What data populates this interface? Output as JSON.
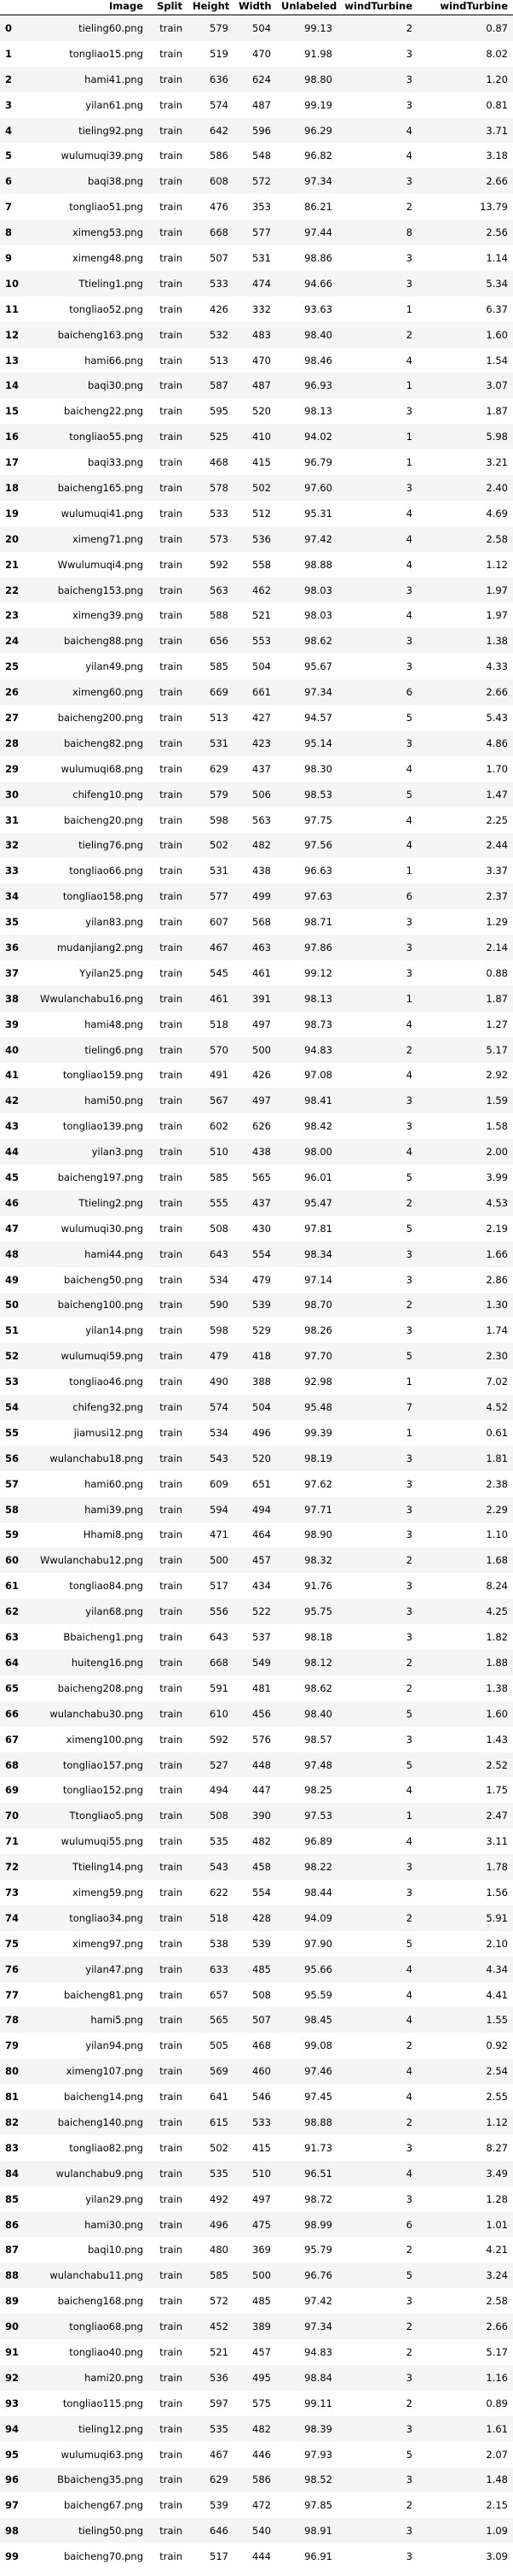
{
  "table": {
    "columns": [
      "",
      "Image",
      "Split",
      "Height",
      "Width",
      "Unlabeled",
      "windTurbine",
      "windTurbine"
    ],
    "rows": [
      [
        "0",
        "tieling60.png",
        "train",
        "579",
        "504",
        "99.13",
        "2",
        "0.87"
      ],
      [
        "1",
        "tongliao15.png",
        "train",
        "519",
        "470",
        "91.98",
        "3",
        "8.02"
      ],
      [
        "2",
        "hami41.png",
        "train",
        "636",
        "624",
        "98.80",
        "3",
        "1.20"
      ],
      [
        "3",
        "yilan61.png",
        "train",
        "574",
        "487",
        "99.19",
        "3",
        "0.81"
      ],
      [
        "4",
        "tieling92.png",
        "train",
        "642",
        "596",
        "96.29",
        "4",
        "3.71"
      ],
      [
        "5",
        "wulumuqi39.png",
        "train",
        "586",
        "548",
        "96.82",
        "4",
        "3.18"
      ],
      [
        "6",
        "baqi38.png",
        "train",
        "608",
        "572",
        "97.34",
        "3",
        "2.66"
      ],
      [
        "7",
        "tongliao51.png",
        "train",
        "476",
        "353",
        "86.21",
        "2",
        "13.79"
      ],
      [
        "8",
        "ximeng53.png",
        "train",
        "668",
        "577",
        "97.44",
        "8",
        "2.56"
      ],
      [
        "9",
        "ximeng48.png",
        "train",
        "507",
        "531",
        "98.86",
        "3",
        "1.14"
      ],
      [
        "10",
        "Ttieling1.png",
        "train",
        "533",
        "474",
        "94.66",
        "3",
        "5.34"
      ],
      [
        "11",
        "tongliao52.png",
        "train",
        "426",
        "332",
        "93.63",
        "1",
        "6.37"
      ],
      [
        "12",
        "baicheng163.png",
        "train",
        "532",
        "483",
        "98.40",
        "2",
        "1.60"
      ],
      [
        "13",
        "hami66.png",
        "train",
        "513",
        "470",
        "98.46",
        "4",
        "1.54"
      ],
      [
        "14",
        "baqi30.png",
        "train",
        "587",
        "487",
        "96.93",
        "1",
        "3.07"
      ],
      [
        "15",
        "baicheng22.png",
        "train",
        "595",
        "520",
        "98.13",
        "3",
        "1.87"
      ],
      [
        "16",
        "tongliao55.png",
        "train",
        "525",
        "410",
        "94.02",
        "1",
        "5.98"
      ],
      [
        "17",
        "baqi33.png",
        "train",
        "468",
        "415",
        "96.79",
        "1",
        "3.21"
      ],
      [
        "18",
        "baicheng165.png",
        "train",
        "578",
        "502",
        "97.60",
        "3",
        "2.40"
      ],
      [
        "19",
        "wulumuqi41.png",
        "train",
        "533",
        "512",
        "95.31",
        "4",
        "4.69"
      ],
      [
        "20",
        "ximeng71.png",
        "train",
        "573",
        "536",
        "97.42",
        "4",
        "2.58"
      ],
      [
        "21",
        "Wwulumuqi4.png",
        "train",
        "592",
        "558",
        "98.88",
        "4",
        "1.12"
      ],
      [
        "22",
        "baicheng153.png",
        "train",
        "563",
        "462",
        "98.03",
        "3",
        "1.97"
      ],
      [
        "23",
        "ximeng39.png",
        "train",
        "588",
        "521",
        "98.03",
        "4",
        "1.97"
      ],
      [
        "24",
        "baicheng88.png",
        "train",
        "656",
        "553",
        "98.62",
        "3",
        "1.38"
      ],
      [
        "25",
        "yilan49.png",
        "train",
        "585",
        "504",
        "95.67",
        "3",
        "4.33"
      ],
      [
        "26",
        "ximeng60.png",
        "train",
        "669",
        "661",
        "97.34",
        "6",
        "2.66"
      ],
      [
        "27",
        "baicheng200.png",
        "train",
        "513",
        "427",
        "94.57",
        "5",
        "5.43"
      ],
      [
        "28",
        "baicheng82.png",
        "train",
        "531",
        "423",
        "95.14",
        "3",
        "4.86"
      ],
      [
        "29",
        "wulumuqi68.png",
        "train",
        "629",
        "437",
        "98.30",
        "4",
        "1.70"
      ],
      [
        "30",
        "chifeng10.png",
        "train",
        "579",
        "506",
        "98.53",
        "5",
        "1.47"
      ],
      [
        "31",
        "baicheng20.png",
        "train",
        "598",
        "563",
        "97.75",
        "4",
        "2.25"
      ],
      [
        "32",
        "tieling76.png",
        "train",
        "502",
        "482",
        "97.56",
        "4",
        "2.44"
      ],
      [
        "33",
        "tongliao66.png",
        "train",
        "531",
        "438",
        "96.63",
        "1",
        "3.37"
      ],
      [
        "34",
        "tongliao158.png",
        "train",
        "577",
        "499",
        "97.63",
        "6",
        "2.37"
      ],
      [
        "35",
        "yilan83.png",
        "train",
        "607",
        "568",
        "98.71",
        "3",
        "1.29"
      ],
      [
        "36",
        "mudanjiang2.png",
        "train",
        "467",
        "463",
        "97.86",
        "3",
        "2.14"
      ],
      [
        "37",
        "Yyilan25.png",
        "train",
        "545",
        "461",
        "99.12",
        "3",
        "0.88"
      ],
      [
        "38",
        "Wwulanchabu16.png",
        "train",
        "461",
        "391",
        "98.13",
        "1",
        "1.87"
      ],
      [
        "39",
        "hami48.png",
        "train",
        "518",
        "497",
        "98.73",
        "4",
        "1.27"
      ],
      [
        "40",
        "tieling6.png",
        "train",
        "570",
        "500",
        "94.83",
        "2",
        "5.17"
      ],
      [
        "41",
        "tongliao159.png",
        "train",
        "491",
        "426",
        "97.08",
        "4",
        "2.92"
      ],
      [
        "42",
        "hami50.png",
        "train",
        "567",
        "497",
        "98.41",
        "3",
        "1.59"
      ],
      [
        "43",
        "tongliao139.png",
        "train",
        "602",
        "626",
        "98.42",
        "3",
        "1.58"
      ],
      [
        "44",
        "yilan3.png",
        "train",
        "510",
        "438",
        "98.00",
        "4",
        "2.00"
      ],
      [
        "45",
        "baicheng197.png",
        "train",
        "585",
        "565",
        "96.01",
        "5",
        "3.99"
      ],
      [
        "46",
        "Ttieling2.png",
        "train",
        "555",
        "437",
        "95.47",
        "2",
        "4.53"
      ],
      [
        "47",
        "wulumuqi30.png",
        "train",
        "508",
        "430",
        "97.81",
        "5",
        "2.19"
      ],
      [
        "48",
        "hami44.png",
        "train",
        "643",
        "554",
        "98.34",
        "3",
        "1.66"
      ],
      [
        "49",
        "baicheng50.png",
        "train",
        "534",
        "479",
        "97.14",
        "3",
        "2.86"
      ],
      [
        "50",
        "baicheng100.png",
        "train",
        "590",
        "539",
        "98.70",
        "2",
        "1.30"
      ],
      [
        "51",
        "yilan14.png",
        "train",
        "598",
        "529",
        "98.26",
        "3",
        "1.74"
      ],
      [
        "52",
        "wulumuqi59.png",
        "train",
        "479",
        "418",
        "97.70",
        "5",
        "2.30"
      ],
      [
        "53",
        "tongliao46.png",
        "train",
        "490",
        "388",
        "92.98",
        "1",
        "7.02"
      ],
      [
        "54",
        "chifeng32.png",
        "train",
        "574",
        "504",
        "95.48",
        "7",
        "4.52"
      ],
      [
        "55",
        "jiamusi12.png",
        "train",
        "534",
        "496",
        "99.39",
        "1",
        "0.61"
      ],
      [
        "56",
        "wulanchabu18.png",
        "train",
        "543",
        "520",
        "98.19",
        "3",
        "1.81"
      ],
      [
        "57",
        "hami60.png",
        "train",
        "609",
        "651",
        "97.62",
        "3",
        "2.38"
      ],
      [
        "58",
        "hami39.png",
        "train",
        "594",
        "494",
        "97.71",
        "3",
        "2.29"
      ],
      [
        "59",
        "Hhami8.png",
        "train",
        "471",
        "464",
        "98.90",
        "3",
        "1.10"
      ],
      [
        "60",
        "Wwulanchabu12.png",
        "train",
        "500",
        "457",
        "98.32",
        "2",
        "1.68"
      ],
      [
        "61",
        "tongliao84.png",
        "train",
        "517",
        "434",
        "91.76",
        "3",
        "8.24"
      ],
      [
        "62",
        "yilan68.png",
        "train",
        "556",
        "522",
        "95.75",
        "3",
        "4.25"
      ],
      [
        "63",
        "Bbaicheng1.png",
        "train",
        "643",
        "537",
        "98.18",
        "3",
        "1.82"
      ],
      [
        "64",
        "huiteng16.png",
        "train",
        "668",
        "549",
        "98.12",
        "2",
        "1.88"
      ],
      [
        "65",
        "baicheng208.png",
        "train",
        "591",
        "481",
        "98.62",
        "2",
        "1.38"
      ],
      [
        "66",
        "wulanchabu30.png",
        "train",
        "610",
        "456",
        "98.40",
        "5",
        "1.60"
      ],
      [
        "67",
        "ximeng100.png",
        "train",
        "592",
        "576",
        "98.57",
        "3",
        "1.43"
      ],
      [
        "68",
        "tongliao157.png",
        "train",
        "527",
        "448",
        "97.48",
        "5",
        "2.52"
      ],
      [
        "69",
        "tongliao152.png",
        "train",
        "494",
        "447",
        "98.25",
        "4",
        "1.75"
      ],
      [
        "70",
        "Ttongliao5.png",
        "train",
        "508",
        "390",
        "97.53",
        "1",
        "2.47"
      ],
      [
        "71",
        "wulumuqi55.png",
        "train",
        "535",
        "482",
        "96.89",
        "4",
        "3.11"
      ],
      [
        "72",
        "Ttieling14.png",
        "train",
        "543",
        "458",
        "98.22",
        "3",
        "1.78"
      ],
      [
        "73",
        "ximeng59.png",
        "train",
        "622",
        "554",
        "98.44",
        "3",
        "1.56"
      ],
      [
        "74",
        "tongliao34.png",
        "train",
        "518",
        "428",
        "94.09",
        "2",
        "5.91"
      ],
      [
        "75",
        "ximeng97.png",
        "train",
        "538",
        "539",
        "97.90",
        "5",
        "2.10"
      ],
      [
        "76",
        "yilan47.png",
        "train",
        "633",
        "485",
        "95.66",
        "4",
        "4.34"
      ],
      [
        "77",
        "baicheng81.png",
        "train",
        "657",
        "508",
        "95.59",
        "4",
        "4.41"
      ],
      [
        "78",
        "hami5.png",
        "train",
        "565",
        "507",
        "98.45",
        "4",
        "1.55"
      ],
      [
        "79",
        "yilan94.png",
        "train",
        "505",
        "468",
        "99.08",
        "2",
        "0.92"
      ],
      [
        "80",
        "ximeng107.png",
        "train",
        "569",
        "460",
        "97.46",
        "4",
        "2.54"
      ],
      [
        "81",
        "baicheng14.png",
        "train",
        "641",
        "546",
        "97.45",
        "4",
        "2.55"
      ],
      [
        "82",
        "baicheng140.png",
        "train",
        "615",
        "533",
        "98.88",
        "2",
        "1.12"
      ],
      [
        "83",
        "tongliao82.png",
        "train",
        "502",
        "415",
        "91.73",
        "3",
        "8.27"
      ],
      [
        "84",
        "wulanchabu9.png",
        "train",
        "535",
        "510",
        "96.51",
        "4",
        "3.49"
      ],
      [
        "85",
        "yilan29.png",
        "train",
        "492",
        "497",
        "98.72",
        "3",
        "1.28"
      ],
      [
        "86",
        "hami30.png",
        "train",
        "496",
        "475",
        "98.99",
        "6",
        "1.01"
      ],
      [
        "87",
        "baqi10.png",
        "train",
        "480",
        "369",
        "95.79",
        "2",
        "4.21"
      ],
      [
        "88",
        "wulanchabu11.png",
        "train",
        "585",
        "500",
        "96.76",
        "5",
        "3.24"
      ],
      [
        "89",
        "baicheng168.png",
        "train",
        "572",
        "485",
        "97.42",
        "3",
        "2.58"
      ],
      [
        "90",
        "tongliao68.png",
        "train",
        "452",
        "389",
        "97.34",
        "2",
        "2.66"
      ],
      [
        "91",
        "tongliao40.png",
        "train",
        "521",
        "457",
        "94.83",
        "2",
        "5.17"
      ],
      [
        "92",
        "hami20.png",
        "train",
        "536",
        "495",
        "98.84",
        "3",
        "1.16"
      ],
      [
        "93",
        "tongliao115.png",
        "train",
        "597",
        "575",
        "99.11",
        "2",
        "0.89"
      ],
      [
        "94",
        "tieling12.png",
        "train",
        "535",
        "482",
        "98.39",
        "3",
        "1.61"
      ],
      [
        "95",
        "wulumuqi63.png",
        "train",
        "467",
        "446",
        "97.93",
        "5",
        "2.07"
      ],
      [
        "96",
        "Bbaicheng35.png",
        "train",
        "629",
        "586",
        "98.52",
        "3",
        "1.48"
      ],
      [
        "97",
        "baicheng67.png",
        "train",
        "539",
        "472",
        "97.85",
        "2",
        "2.15"
      ],
      [
        "98",
        "tieling50.png",
        "train",
        "646",
        "540",
        "98.91",
        "3",
        "1.09"
      ],
      [
        "99",
        "baicheng70.png",
        "train",
        "517",
        "444",
        "96.91",
        "3",
        "3.09"
      ]
    ]
  }
}
